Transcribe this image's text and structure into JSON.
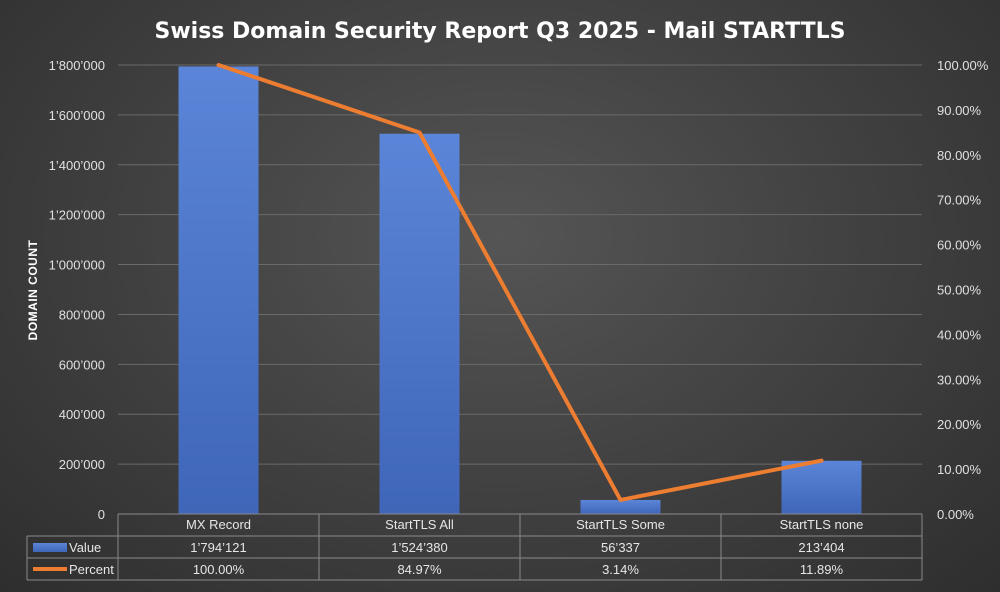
{
  "chart_data": {
    "type": "bar",
    "title": "Swiss Domain Security Report Q3 2025 - Mail STARTTLS",
    "ylabel": "DOMAIN COUNT",
    "categories": [
      "MX Record",
      "StartTLS All",
      "StartTLS Some",
      "StartTLS none"
    ],
    "ylim": [
      0,
      1800000
    ],
    "y2lim": [
      0,
      1.0
    ],
    "y_ticks": [
      "0",
      "200’000",
      "400’000",
      "600’000",
      "800’000",
      "1’000’000",
      "1’200’000",
      "1’400’000",
      "1’600’000",
      "1’800’000"
    ],
    "y2_ticks": [
      "0.00%",
      "10.00%",
      "20.00%",
      "30.00%",
      "40.00%",
      "50.00%",
      "60.00%",
      "70.00%",
      "80.00%",
      "90.00%",
      "100.00%"
    ],
    "grid": true,
    "legend": "data-table",
    "series": [
      {
        "name": "Value",
        "type": "bar",
        "axis": "left",
        "color": "#4a72c4",
        "values": [
          1794121,
          1524380,
          56337,
          213404
        ],
        "labels": [
          "1’794’121",
          "1’524’380",
          "56’337",
          "213’404"
        ]
      },
      {
        "name": "Percent",
        "type": "line",
        "axis": "right",
        "color": "#ed7d31",
        "values": [
          1.0,
          0.8497,
          0.0314,
          0.1189
        ],
        "labels": [
          "100.00%",
          "84.97%",
          "3.14%",
          "11.89%"
        ]
      }
    ]
  }
}
